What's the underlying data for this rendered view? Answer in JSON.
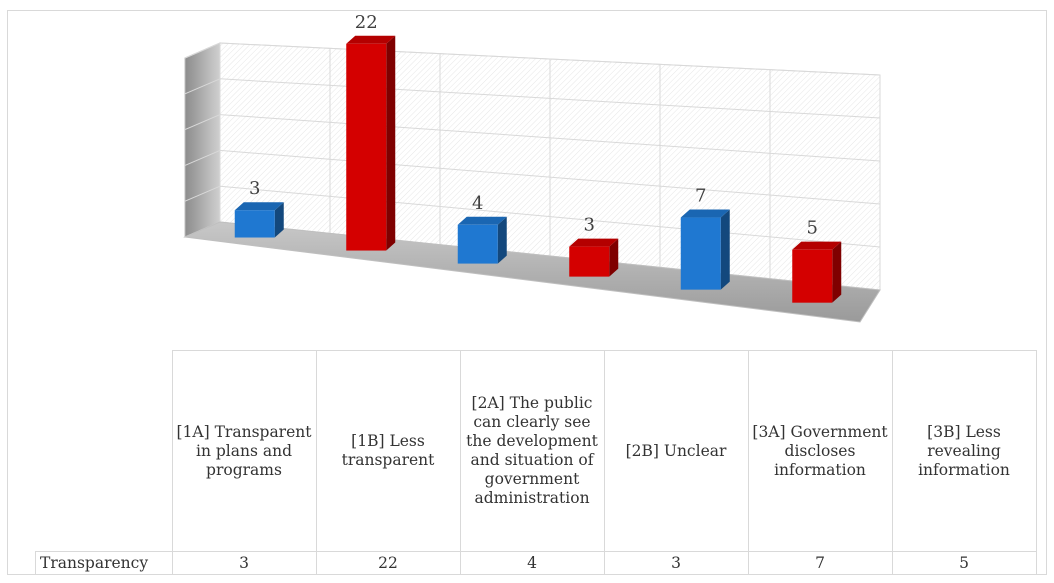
{
  "chart_data": {
    "type": "bar3d",
    "categories": [
      "[1A] Transparent in plans and programs",
      "[1B] Less transparent",
      "[2A] The public can clearly see the development and situation of government administration",
      "[2B] Unclear",
      "[3A] Government discloses information",
      "[3B] Less revealing information"
    ],
    "series": [
      {
        "name": "Transparency",
        "colors": [
          "#1f78d1",
          "#d40000",
          "#1f78d1",
          "#d40000",
          "#1f78d1",
          "#d40000"
        ],
        "values": [
          3,
          22,
          4,
          3,
          7,
          5
        ]
      }
    ],
    "ylim": [
      0,
      25
    ],
    "yticks": [
      0,
      5,
      10,
      15,
      20,
      25
    ],
    "grid": true
  }
}
